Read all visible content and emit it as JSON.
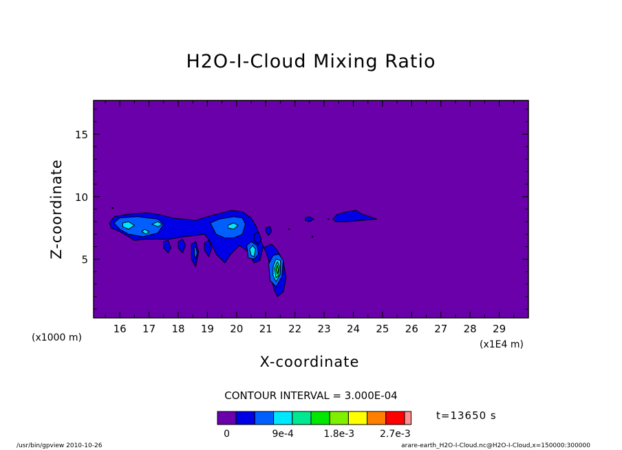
{
  "chart_data": {
    "type": "contour",
    "title": "H2O-I-Cloud Mixing Ratio",
    "xlabel": "X-coordinate",
    "ylabel": "Z-coordinate",
    "x_unit_left": "(x1000 m)",
    "x_unit_right": "(x1E4 m)",
    "xlim": [
      15.1,
      30.0
    ],
    "ylim": [
      0.3,
      17.7
    ],
    "x_ticks": [
      16,
      17,
      18,
      19,
      20,
      21,
      22,
      23,
      24,
      25,
      26,
      27,
      28,
      29
    ],
    "x_tick_labels": [
      "16",
      "17",
      "18",
      "19",
      "20",
      "21",
      "22",
      "23",
      "24",
      "25",
      "26",
      "27",
      "28",
      "29"
    ],
    "y_ticks": [
      5,
      10,
      15
    ],
    "y_tick_labels": [
      "5",
      "10",
      "15"
    ],
    "background_color": "#6a00aa",
    "contour_interval_text": "CONTOUR INTERVAL = 3.000E-04",
    "contour_interval": 0.0003,
    "time_text": "t=13650 s",
    "colorbar": {
      "levels": [
        0,
        0.0003,
        0.0006,
        0.0009,
        0.0012,
        0.0015,
        0.0018,
        0.0021,
        0.0024,
        0.0027,
        0.003
      ],
      "colors": [
        "#6a00aa",
        "#0000e6",
        "#0060ff",
        "#00e8ff",
        "#00e890",
        "#00e800",
        "#80f000",
        "#ffff00",
        "#ff8000",
        "#ff0000",
        "#ff9090"
      ],
      "tick_labels": [
        {
          "level": 0,
          "text": "0"
        },
        {
          "level": 0.0009,
          "text": "9e-4"
        },
        {
          "level": 0.0018,
          "text": "1.8e-3"
        },
        {
          "level": 0.0027,
          "text": "2.7e-3"
        }
      ]
    },
    "regions": [
      {
        "level": 1,
        "points": [
          [
            15.65,
            7.9
          ],
          [
            15.8,
            8.4
          ],
          [
            16.3,
            8.6
          ],
          [
            16.9,
            8.7
          ],
          [
            17.3,
            8.6
          ],
          [
            17.8,
            8.3
          ],
          [
            18.2,
            8.2
          ],
          [
            18.6,
            8.1
          ],
          [
            19.0,
            8.4
          ],
          [
            19.5,
            8.7
          ],
          [
            19.8,
            8.9
          ],
          [
            20.2,
            8.8
          ],
          [
            20.5,
            8.3
          ],
          [
            20.7,
            7.5
          ],
          [
            20.8,
            6.6
          ],
          [
            21.0,
            5.6
          ],
          [
            21.1,
            4.9
          ],
          [
            21.2,
            3.3
          ],
          [
            21.3,
            2.5
          ],
          [
            21.4,
            2.0
          ],
          [
            21.6,
            2.4
          ],
          [
            21.7,
            3.5
          ],
          [
            21.6,
            4.8
          ],
          [
            21.4,
            5.7
          ],
          [
            21.2,
            6.2
          ],
          [
            20.9,
            5.9
          ],
          [
            20.8,
            4.9
          ],
          [
            20.6,
            4.7
          ],
          [
            20.4,
            5.6
          ],
          [
            20.1,
            6.1
          ],
          [
            19.8,
            5.4
          ],
          [
            19.6,
            4.7
          ],
          [
            19.3,
            5.4
          ],
          [
            19.1,
            6.4
          ],
          [
            18.9,
            7.0
          ],
          [
            18.6,
            6.9
          ],
          [
            18.2,
            6.8
          ],
          [
            17.7,
            6.6
          ],
          [
            17.3,
            6.6
          ],
          [
            16.9,
            6.6
          ],
          [
            16.5,
            6.5
          ],
          [
            16.3,
            6.8
          ],
          [
            16.0,
            7.2
          ],
          [
            15.7,
            7.5
          ]
        ]
      },
      {
        "level": 1,
        "points": [
          [
            17.5,
            6.4
          ],
          [
            17.65,
            6.5
          ],
          [
            17.75,
            5.9
          ],
          [
            17.65,
            5.5
          ],
          [
            17.5,
            5.9
          ]
        ]
      },
      {
        "level": 1,
        "points": [
          [
            18.0,
            6.4
          ],
          [
            18.15,
            6.6
          ],
          [
            18.25,
            6.1
          ],
          [
            18.15,
            5.5
          ],
          [
            18.0,
            5.9
          ]
        ]
      },
      {
        "level": 1,
        "points": [
          [
            18.45,
            6.2
          ],
          [
            18.6,
            6.4
          ],
          [
            18.7,
            5.6
          ],
          [
            18.6,
            4.4
          ],
          [
            18.45,
            5.0
          ]
        ]
      },
      {
        "level": 1,
        "points": [
          [
            18.9,
            6.3
          ],
          [
            19.05,
            6.5
          ],
          [
            19.15,
            5.9
          ],
          [
            19.05,
            5.2
          ],
          [
            18.9,
            5.7
          ]
        ]
      },
      {
        "level": 1,
        "points": [
          [
            20.6,
            7.0
          ],
          [
            20.75,
            7.2
          ],
          [
            20.85,
            6.6
          ],
          [
            20.75,
            6.2
          ],
          [
            20.6,
            6.5
          ]
        ]
      },
      {
        "level": 1,
        "points": [
          [
            21.0,
            7.5
          ],
          [
            21.15,
            7.6
          ],
          [
            21.2,
            7.2
          ],
          [
            21.1,
            6.9
          ],
          [
            21.0,
            7.2
          ]
        ]
      },
      {
        "level": 1,
        "points": [
          [
            22.35,
            8.3
          ],
          [
            22.5,
            8.4
          ],
          [
            22.65,
            8.2
          ],
          [
            22.5,
            8.0
          ],
          [
            22.35,
            8.1
          ]
        ]
      },
      {
        "level": 1,
        "points": [
          [
            23.3,
            8.2
          ],
          [
            23.45,
            8.6
          ],
          [
            23.8,
            8.8
          ],
          [
            24.1,
            8.9
          ],
          [
            24.3,
            8.6
          ],
          [
            24.7,
            8.3
          ],
          [
            24.8,
            8.2
          ],
          [
            24.3,
            8.1
          ],
          [
            23.8,
            8.0
          ],
          [
            23.4,
            8.0
          ]
        ]
      },
      {
        "level": 2,
        "points": [
          [
            15.8,
            7.9
          ],
          [
            16.0,
            8.3
          ],
          [
            16.6,
            8.4
          ],
          [
            17.3,
            8.2
          ],
          [
            17.5,
            7.8
          ],
          [
            17.3,
            7.1
          ],
          [
            16.8,
            6.8
          ],
          [
            16.3,
            7.0
          ],
          [
            16.0,
            7.4
          ]
        ]
      },
      {
        "level": 2,
        "points": [
          [
            19.1,
            7.9
          ],
          [
            19.4,
            8.2
          ],
          [
            19.9,
            8.4
          ],
          [
            20.2,
            8.3
          ],
          [
            20.3,
            7.8
          ],
          [
            20.2,
            7.0
          ],
          [
            19.9,
            6.7
          ],
          [
            19.6,
            6.7
          ],
          [
            19.3,
            7.0
          ]
        ]
      },
      {
        "level": 2,
        "points": [
          [
            20.35,
            6.1
          ],
          [
            20.5,
            6.4
          ],
          [
            20.7,
            6.1
          ],
          [
            20.75,
            5.4
          ],
          [
            20.6,
            5.0
          ],
          [
            20.4,
            5.1
          ]
        ]
      },
      {
        "level": 2,
        "points": [
          [
            21.1,
            4.6
          ],
          [
            21.25,
            5.3
          ],
          [
            21.45,
            5.4
          ],
          [
            21.6,
            4.9
          ],
          [
            21.55,
            3.6
          ],
          [
            21.35,
            2.8
          ],
          [
            21.15,
            3.3
          ]
        ]
      },
      {
        "level": 2,
        "points": [
          [
            18.55,
            5.9
          ],
          [
            18.6,
            6.0
          ],
          [
            18.65,
            5.5
          ],
          [
            18.6,
            5.0
          ],
          [
            18.55,
            5.4
          ]
        ]
      },
      {
        "level": 3,
        "points": [
          [
            16.1,
            7.9
          ],
          [
            16.3,
            8.0
          ],
          [
            16.5,
            7.7
          ],
          [
            16.3,
            7.4
          ],
          [
            16.1,
            7.6
          ]
        ]
      },
      {
        "level": 3,
        "points": [
          [
            16.75,
            7.2
          ],
          [
            16.85,
            7.4
          ],
          [
            17.0,
            7.2
          ],
          [
            16.9,
            7.0
          ]
        ]
      },
      {
        "level": 3,
        "points": [
          [
            17.1,
            7.8
          ],
          [
            17.3,
            8.0
          ],
          [
            17.45,
            7.8
          ],
          [
            17.3,
            7.6
          ]
        ]
      },
      {
        "level": 3,
        "points": [
          [
            19.7,
            7.7
          ],
          [
            19.9,
            7.9
          ],
          [
            20.05,
            7.7
          ],
          [
            19.9,
            7.4
          ],
          [
            19.7,
            7.5
          ]
        ]
      },
      {
        "level": 3,
        "points": [
          [
            20.45,
            5.8
          ],
          [
            20.55,
            6.1
          ],
          [
            20.65,
            5.8
          ],
          [
            20.6,
            5.2
          ],
          [
            20.5,
            5.3
          ]
        ]
      },
      {
        "level": 3,
        "points": [
          [
            21.25,
            4.4
          ],
          [
            21.35,
            5.0
          ],
          [
            21.5,
            4.9
          ],
          [
            21.5,
            3.8
          ],
          [
            21.35,
            3.2
          ],
          [
            21.25,
            3.7
          ]
        ]
      },
      {
        "level": 4,
        "points": [
          [
            21.3,
            4.3
          ],
          [
            21.4,
            4.8
          ],
          [
            21.47,
            4.4
          ],
          [
            21.45,
            3.7
          ],
          [
            21.35,
            3.5
          ]
        ]
      },
      {
        "level": 5,
        "points": [
          [
            21.35,
            4.2
          ],
          [
            21.4,
            4.5
          ],
          [
            21.44,
            4.1
          ],
          [
            21.4,
            3.8
          ]
        ]
      }
    ],
    "speck_points": [
      [
        15.75,
        9.1
      ],
      [
        23.15,
        8.2
      ],
      [
        21.8,
        7.4
      ],
      [
        22.6,
        6.8
      ]
    ]
  },
  "footer": {
    "left": "/usr/bin/gpview   2010-10-26",
    "right": "arare-earth_H2O-I-Cloud.nc@H2O-I-Cloud,x=150000:300000"
  }
}
